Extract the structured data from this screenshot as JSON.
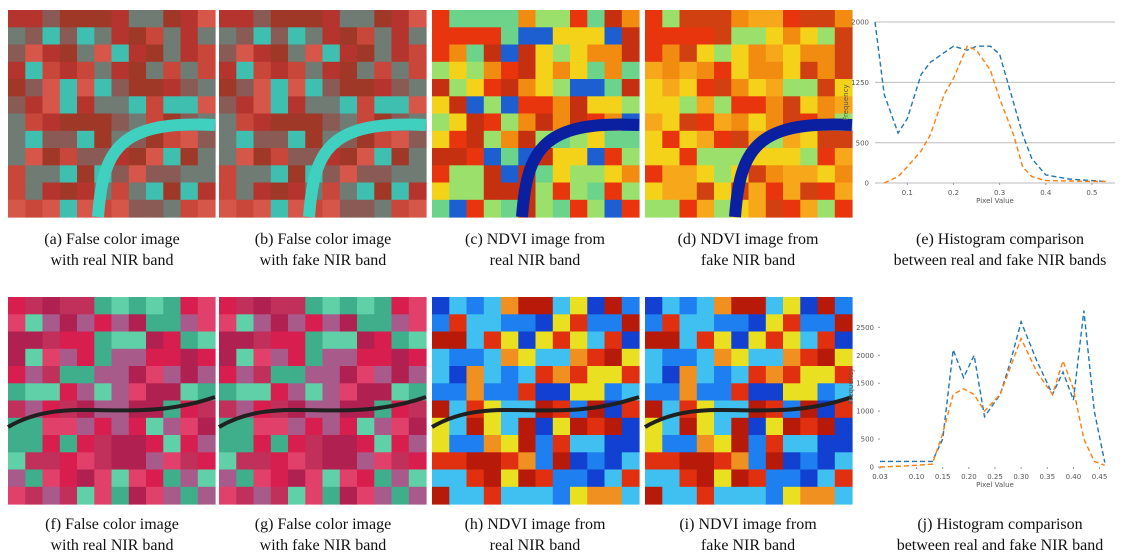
{
  "captions": [
    [
      "(a) False color image",
      "with real NIR band"
    ],
    [
      "(b) False color image",
      "with fake NIR band"
    ],
    [
      "(c) NDVI image from",
      "real NIR band"
    ],
    [
      "(d) NDVI image from",
      "fake NIR band"
    ],
    [
      "(e) Histogram comparison",
      "between real and fake NIR bands"
    ],
    [
      "(f) False color image",
      "with real NIR band"
    ],
    [
      "(g) False color image",
      "with fake NIR band"
    ],
    [
      "(h) NDVI image from",
      "real NIR band"
    ],
    [
      "(i) NDVI image from",
      "fake NIR band"
    ],
    [
      "(j) Histogram comparison",
      "between real and fake NIR band"
    ]
  ],
  "chart_data": [
    {
      "type": "line",
      "xlabel": "Pixel Value",
      "ylabel": "Frequency",
      "x": [
        0.03,
        0.05,
        0.08,
        0.1,
        0.13,
        0.15,
        0.18,
        0.2,
        0.23,
        0.25,
        0.28,
        0.3,
        0.33,
        0.35,
        0.37,
        0.4,
        0.45,
        0.5,
        0.53
      ],
      "series": [
        {
          "color": "#1f77b4",
          "values": [
            2000,
            1100,
            620,
            800,
            1350,
            1500,
            1620,
            1700,
            1650,
            1700,
            1700,
            1600,
            1000,
            600,
            300,
            100,
            50,
            30,
            20
          ]
        },
        {
          "color": "#ff7f0e",
          "values": [
            null,
            0,
            80,
            200,
            400,
            600,
            1100,
            1300,
            1700,
            1650,
            1400,
            1050,
            600,
            200,
            80,
            30,
            25,
            20,
            20
          ]
        }
      ],
      "xlim": [
        0.03,
        0.55
      ],
      "ylim": [
        0,
        2000
      ],
      "xticks": [
        0.1,
        0.2,
        0.3,
        0.4,
        0.5
      ],
      "yticks": [
        0,
        500,
        1250,
        2000
      ],
      "grid": true
    },
    {
      "type": "line",
      "xlabel": "Pixel Value",
      "ylabel": "Frequency",
      "x": [
        0.03,
        0.08,
        0.13,
        0.15,
        0.17,
        0.19,
        0.21,
        0.23,
        0.26,
        0.28,
        0.3,
        0.33,
        0.36,
        0.38,
        0.4,
        0.42,
        0.44,
        0.46
      ],
      "series": [
        {
          "color": "#1f77b4",
          "values": [
            100,
            100,
            100,
            500,
            2100,
            1600,
            2000,
            900,
            1300,
            1900,
            2600,
            1900,
            1300,
            1700,
            1200,
            2800,
            1000,
            80
          ]
        },
        {
          "color": "#ff7f0e",
          "values": [
            0,
            20,
            50,
            600,
            1300,
            1400,
            1300,
            1000,
            1300,
            1800,
            2300,
            1700,
            1300,
            1900,
            1400,
            500,
            100,
            30
          ]
        }
      ],
      "xlim": [
        0.03,
        0.47
      ],
      "ylim": [
        0,
        2900
      ],
      "xticks": [
        {
          "value": 0.03,
          "label": "0.03"
        },
        {
          "value": 0.1,
          "label": "0.10"
        },
        0.15,
        {
          "value": 0.2,
          "label": "0.20"
        },
        0.25,
        {
          "value": 0.3,
          "label": "0.30"
        },
        0.35,
        {
          "value": 0.4,
          "label": "0.40"
        },
        0.45
      ],
      "yticks": [
        0,
        500,
        1000,
        1500,
        2000,
        2500
      ],
      "grid": false
    }
  ]
}
